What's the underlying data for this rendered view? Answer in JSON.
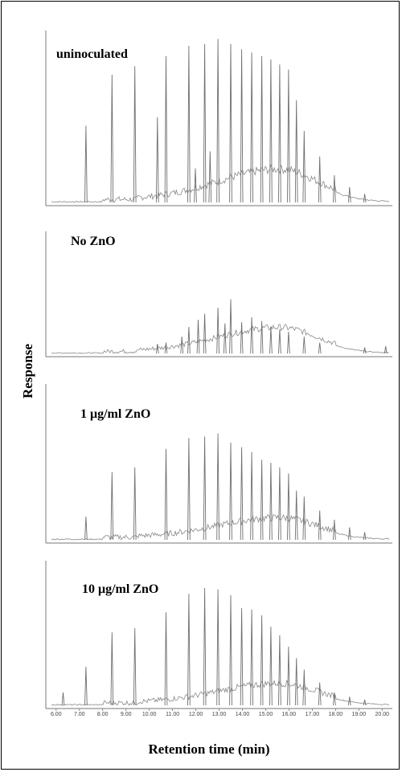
{
  "chart_data": {
    "type": "line",
    "xlabel": "Retention time (min)",
    "ylabel": "Response",
    "xlim": [
      5.8,
      20.3
    ],
    "x_ticks": [
      "6.00",
      "7.00",
      "8.00",
      "9.00",
      "10.00",
      "11.00",
      "12.00",
      "13.00",
      "14.00",
      "15.00",
      "16.00",
      "17.00",
      "18.00",
      "19.00",
      "20.00"
    ],
    "panels": [
      {
        "label": "uninoculated",
        "peaks": [
          {
            "x": 7.28,
            "y": 0.45
          },
          {
            "x": 8.4,
            "y": 0.75
          },
          {
            "x": 9.38,
            "y": 0.8
          },
          {
            "x": 10.35,
            "y": 0.5
          },
          {
            "x": 10.72,
            "y": 0.86
          },
          {
            "x": 11.7,
            "y": 0.92
          },
          {
            "x": 11.98,
            "y": 0.2
          },
          {
            "x": 12.38,
            "y": 0.93
          },
          {
            "x": 12.61,
            "y": 0.3
          },
          {
            "x": 12.95,
            "y": 0.96
          },
          {
            "x": 13.5,
            "y": 0.93
          },
          {
            "x": 13.97,
            "y": 0.9
          },
          {
            "x": 14.4,
            "y": 0.88
          },
          {
            "x": 14.83,
            "y": 0.86
          },
          {
            "x": 15.22,
            "y": 0.84
          },
          {
            "x": 15.6,
            "y": 0.81
          },
          {
            "x": 15.98,
            "y": 0.78
          },
          {
            "x": 16.32,
            "y": 0.6
          },
          {
            "x": 16.65,
            "y": 0.42
          },
          {
            "x": 17.32,
            "y": 0.27
          },
          {
            "x": 17.95,
            "y": 0.16
          },
          {
            "x": 18.6,
            "y": 0.09
          },
          {
            "x": 19.25,
            "y": 0.05
          }
        ],
        "hump": {
          "center": 15.6,
          "height": 0.17
        }
      },
      {
        "label": "No ZnO",
        "peaks": [
          {
            "x": 10.35,
            "y": 0.08
          },
          {
            "x": 10.72,
            "y": 0.09
          },
          {
            "x": 11.4,
            "y": 0.14
          },
          {
            "x": 11.7,
            "y": 0.22
          },
          {
            "x": 12.1,
            "y": 0.28
          },
          {
            "x": 12.38,
            "y": 0.33
          },
          {
            "x": 12.95,
            "y": 0.38
          },
          {
            "x": 13.25,
            "y": 0.25
          },
          {
            "x": 13.5,
            "y": 0.45
          },
          {
            "x": 13.97,
            "y": 0.26
          },
          {
            "x": 14.4,
            "y": 0.3
          },
          {
            "x": 14.83,
            "y": 0.27
          },
          {
            "x": 15.22,
            "y": 0.22
          },
          {
            "x": 15.6,
            "y": 0.2
          },
          {
            "x": 15.98,
            "y": 0.18
          },
          {
            "x": 16.65,
            "y": 0.14
          },
          {
            "x": 17.32,
            "y": 0.09
          },
          {
            "x": 19.25,
            "y": 0.05
          },
          {
            "x": 20.15,
            "y": 0.06
          }
        ],
        "hump": {
          "center": 15.6,
          "height": 0.19
        }
      },
      {
        "label": "1 μg/ml ZnO",
        "peaks": [
          {
            "x": 7.28,
            "y": 0.15
          },
          {
            "x": 8.4,
            "y": 0.44
          },
          {
            "x": 9.38,
            "y": 0.47
          },
          {
            "x": 10.72,
            "y": 0.59
          },
          {
            "x": 11.7,
            "y": 0.66
          },
          {
            "x": 12.38,
            "y": 0.67
          },
          {
            "x": 12.95,
            "y": 0.69
          },
          {
            "x": 13.5,
            "y": 0.63
          },
          {
            "x": 13.97,
            "y": 0.6
          },
          {
            "x": 14.4,
            "y": 0.57
          },
          {
            "x": 14.83,
            "y": 0.52
          },
          {
            "x": 15.22,
            "y": 0.5
          },
          {
            "x": 15.6,
            "y": 0.47
          },
          {
            "x": 15.98,
            "y": 0.43
          },
          {
            "x": 16.32,
            "y": 0.32
          },
          {
            "x": 16.65,
            "y": 0.28
          },
          {
            "x": 17.32,
            "y": 0.19
          },
          {
            "x": 17.95,
            "y": 0.13
          },
          {
            "x": 18.6,
            "y": 0.08
          },
          {
            "x": 19.25,
            "y": 0.05
          }
        ],
        "hump": {
          "center": 15.6,
          "height": 0.12
        }
      },
      {
        "label": "10 μg/ml ZnO",
        "peaks": [
          {
            "x": 6.3,
            "y": 0.09
          },
          {
            "x": 7.28,
            "y": 0.27
          },
          {
            "x": 8.4,
            "y": 0.51
          },
          {
            "x": 9.38,
            "y": 0.54
          },
          {
            "x": 10.72,
            "y": 0.65
          },
          {
            "x": 11.7,
            "y": 0.78
          },
          {
            "x": 12.38,
            "y": 0.82
          },
          {
            "x": 12.95,
            "y": 0.81
          },
          {
            "x": 13.5,
            "y": 0.77
          },
          {
            "x": 13.97,
            "y": 0.68
          },
          {
            "x": 14.4,
            "y": 0.67
          },
          {
            "x": 14.83,
            "y": 0.63
          },
          {
            "x": 15.22,
            "y": 0.55
          },
          {
            "x": 15.6,
            "y": 0.49
          },
          {
            "x": 15.98,
            "y": 0.41
          },
          {
            "x": 16.32,
            "y": 0.33
          },
          {
            "x": 16.65,
            "y": 0.25
          },
          {
            "x": 17.32,
            "y": 0.16
          },
          {
            "x": 17.95,
            "y": 0.09
          },
          {
            "x": 18.6,
            "y": 0.06
          },
          {
            "x": 19.25,
            "y": 0.04
          }
        ],
        "hump": {
          "center": 15.6,
          "height": 0.13
        }
      }
    ]
  }
}
